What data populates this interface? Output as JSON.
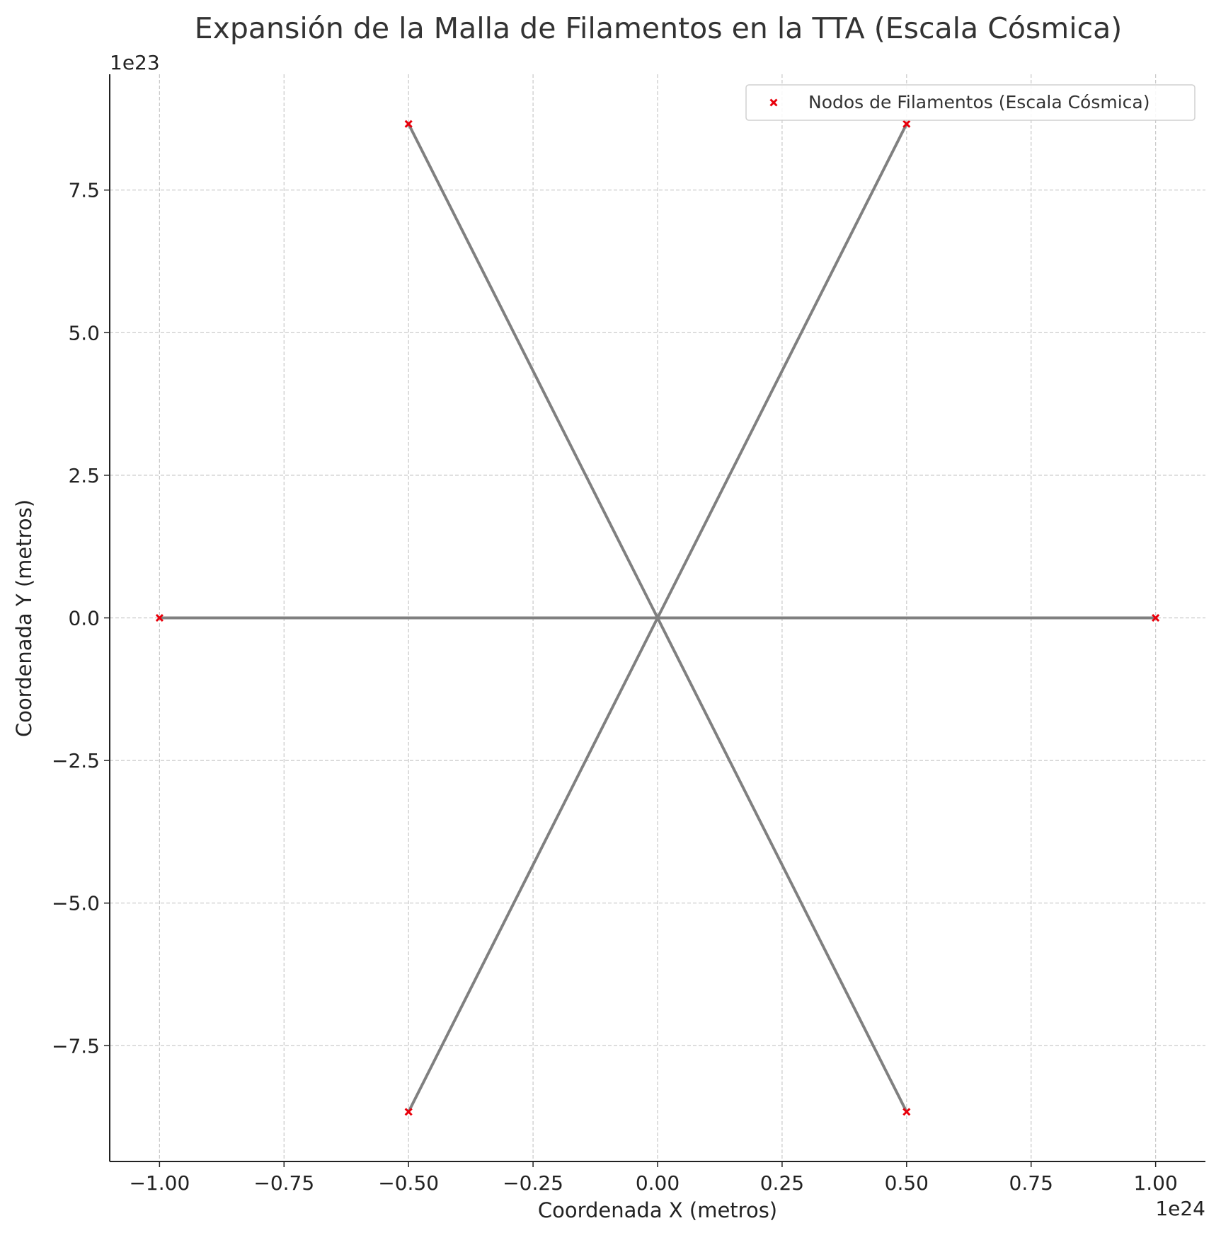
{
  "chart_data": {
    "type": "scatter",
    "title": "Expansión de la Malla de Filamentos en la TTA (Escala Cósmica)",
    "xlabel": "Coordenada X (metros)",
    "ylabel": "Coordenada Y (metros)",
    "x_offset_label": "1e24",
    "y_offset_label": "1e23",
    "xlim": [
      -1.1,
      1.1
    ],
    "ylim": [
      -9.53,
      9.53
    ],
    "x_ticks": [
      {
        "value": -1.0,
        "label": "−1.00"
      },
      {
        "value": -0.75,
        "label": "−0.75"
      },
      {
        "value": -0.5,
        "label": "−0.50"
      },
      {
        "value": -0.25,
        "label": "−0.25"
      },
      {
        "value": 0.0,
        "label": "0.00"
      },
      {
        "value": 0.25,
        "label": "0.25"
      },
      {
        "value": 0.5,
        "label": "0.50"
      },
      {
        "value": 0.75,
        "label": "0.75"
      },
      {
        "value": 1.0,
        "label": "1.00"
      }
    ],
    "y_ticks": [
      {
        "value": -7.5,
        "label": "−7.5"
      },
      {
        "value": -5.0,
        "label": "−5.0"
      },
      {
        "value": -2.5,
        "label": "−2.5"
      },
      {
        "value": 0.0,
        "label": "0.0"
      },
      {
        "value": 2.5,
        "label": "2.5"
      },
      {
        "value": 5.0,
        "label": "5.0"
      },
      {
        "value": 7.5,
        "label": "7.5"
      }
    ],
    "grid": true,
    "legend_position": "top-right",
    "series": [
      {
        "name": "Nodos de Filamentos (Escala Cósmica)",
        "marker": "x",
        "color": "#e8000b",
        "points": [
          {
            "x": 1.0,
            "y": 0.0
          },
          {
            "x": 0.5,
            "y": 8.66
          },
          {
            "x": -0.5,
            "y": 8.66
          },
          {
            "x": -1.0,
            "y": 0.0
          },
          {
            "x": -0.5,
            "y": -8.66
          },
          {
            "x": 0.5,
            "y": -8.66
          }
        ]
      }
    ],
    "filament_lines": {
      "color": "#808080",
      "center": {
        "x": 0.0,
        "y": 0.0
      },
      "segments": [
        {
          "from": {
            "x": 0.0,
            "y": 0.0
          },
          "to": {
            "x": 1.0,
            "y": 0.0
          }
        },
        {
          "from": {
            "x": 0.0,
            "y": 0.0
          },
          "to": {
            "x": 0.5,
            "y": 8.66
          }
        },
        {
          "from": {
            "x": 0.0,
            "y": 0.0
          },
          "to": {
            "x": -0.5,
            "y": 8.66
          }
        },
        {
          "from": {
            "x": 0.0,
            "y": 0.0
          },
          "to": {
            "x": -1.0,
            "y": 0.0
          }
        },
        {
          "from": {
            "x": 0.0,
            "y": 0.0
          },
          "to": {
            "x": -0.5,
            "y": -8.66
          }
        },
        {
          "from": {
            "x": 0.0,
            "y": 0.0
          },
          "to": {
            "x": 0.5,
            "y": -8.66
          }
        }
      ]
    }
  }
}
